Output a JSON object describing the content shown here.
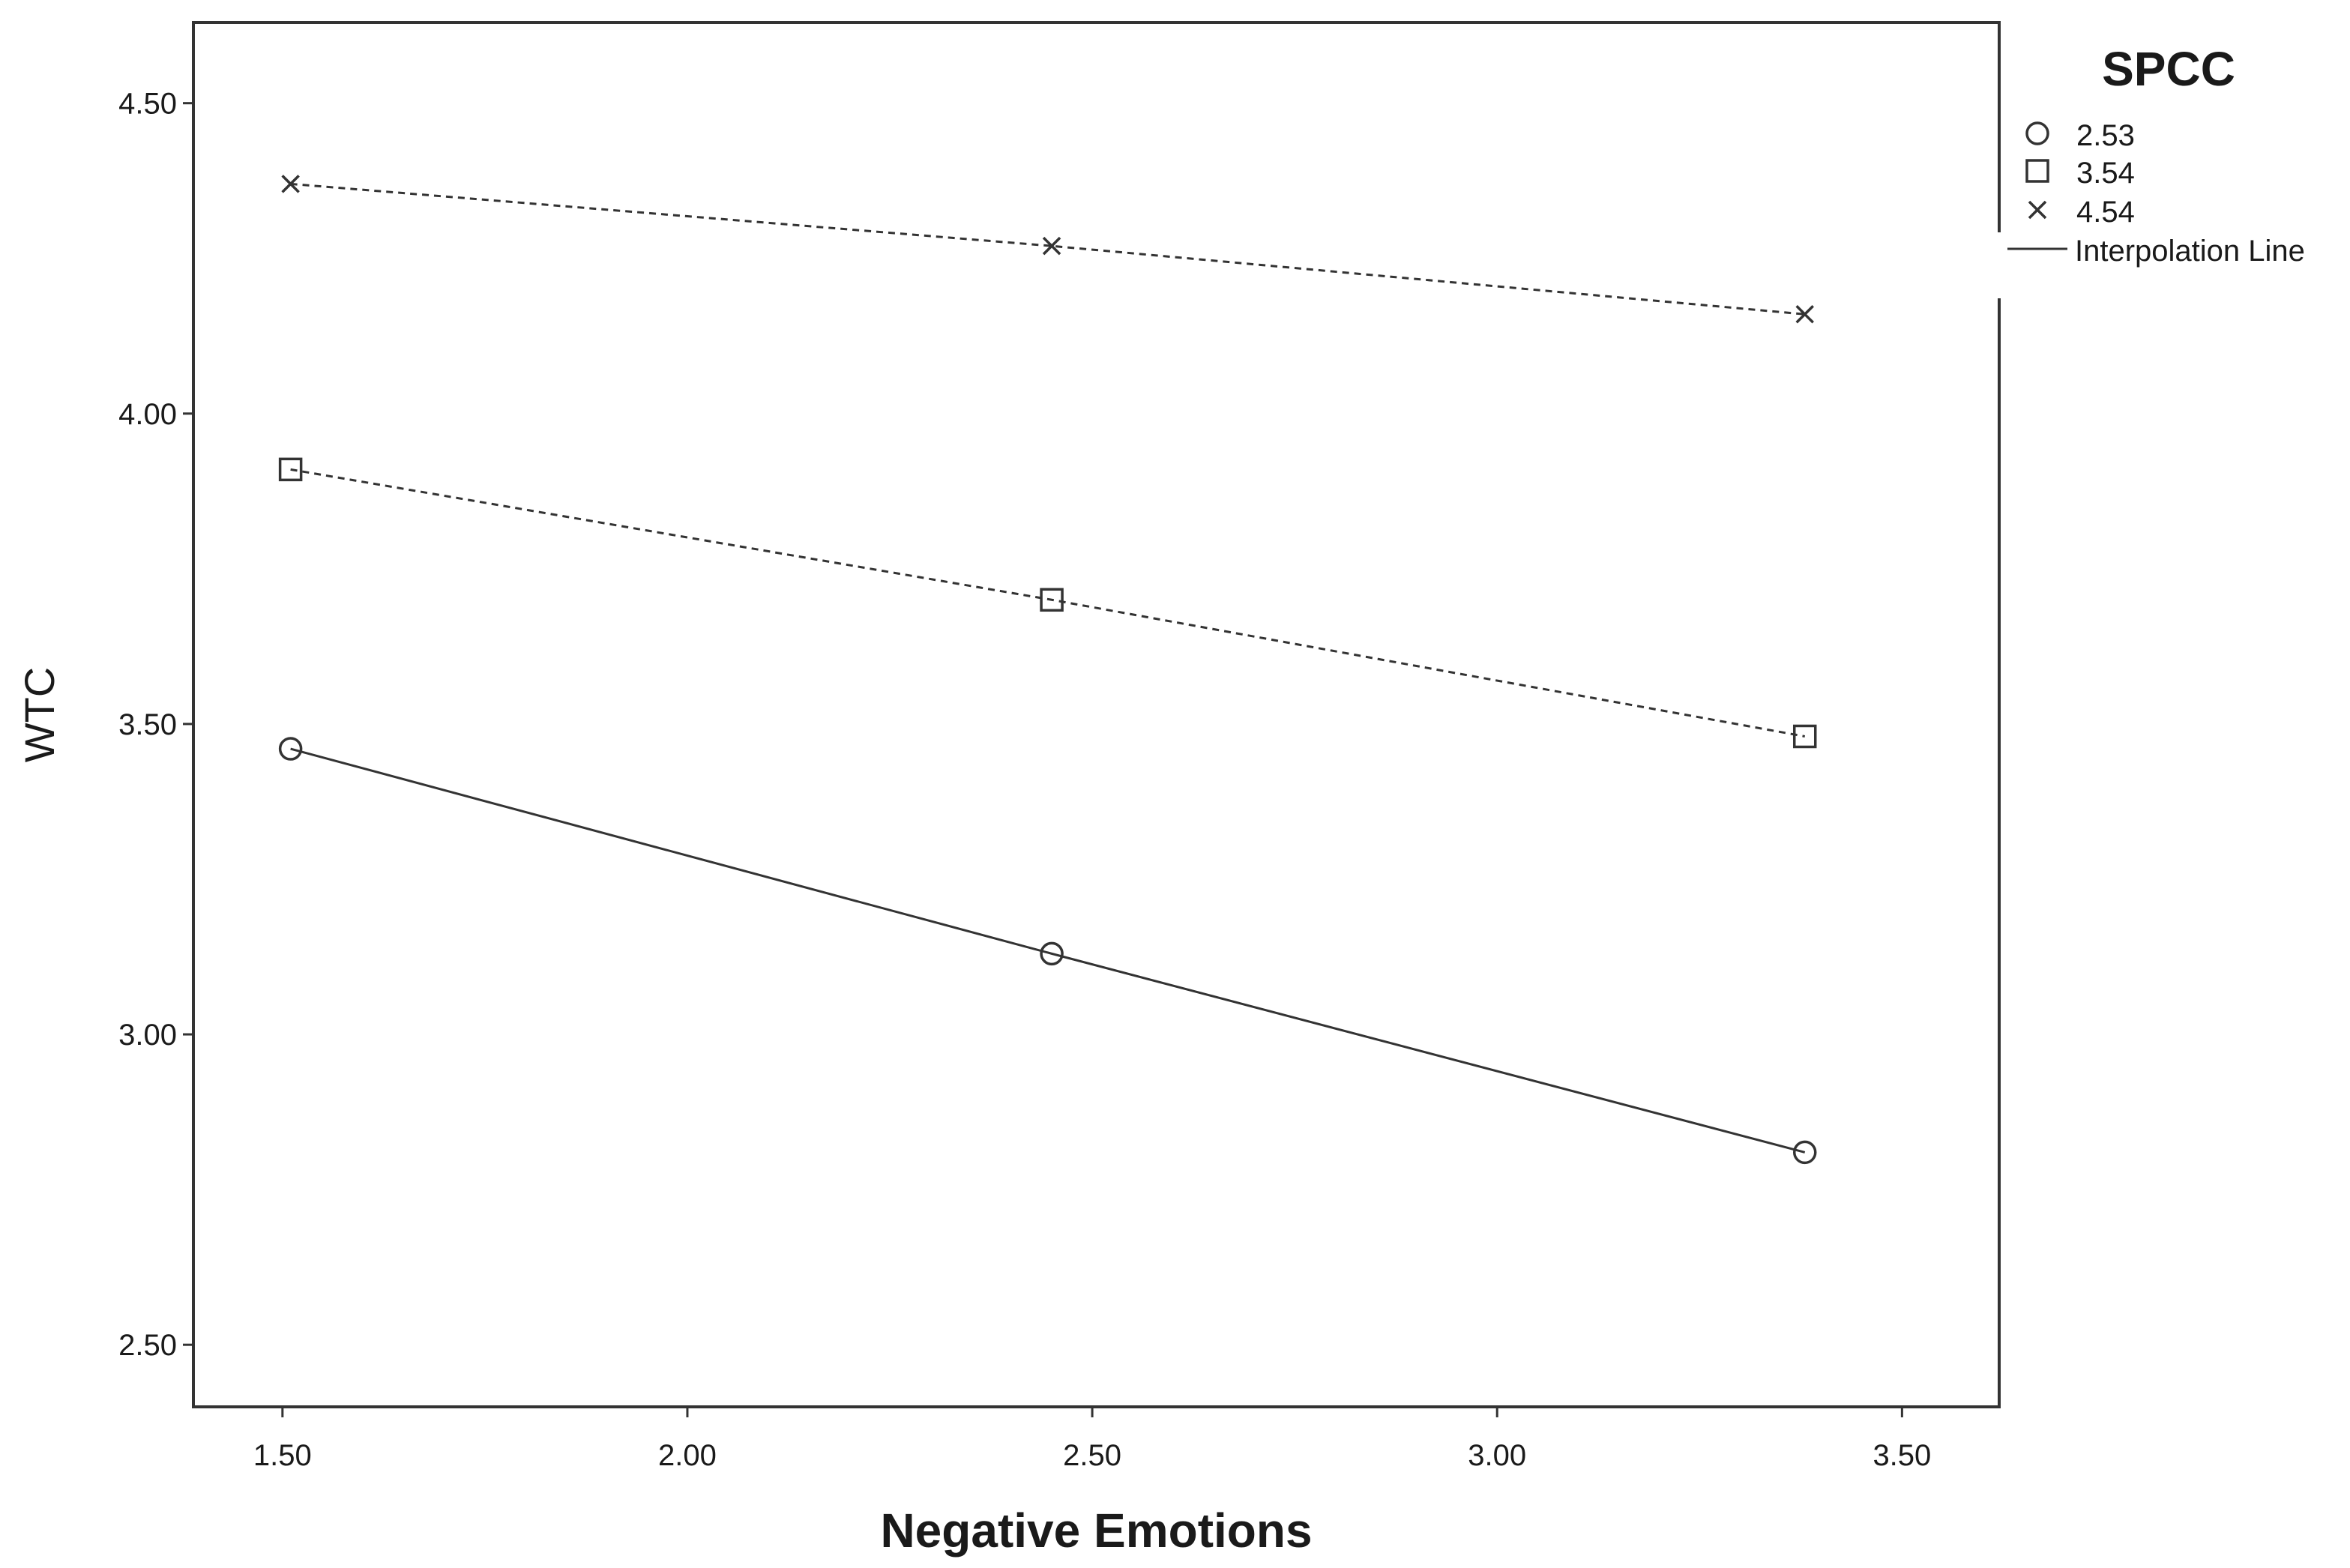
{
  "chart_data": {
    "type": "line",
    "title": "",
    "xlabel": "Negative Emotions",
    "ylabel": "WTC",
    "xlim": [
      1.39,
      3.62
    ],
    "ylim": [
      2.4,
      4.63
    ],
    "x_ticks": [
      "1.50",
      "2.00",
      "2.50",
      "3.00",
      "3.50"
    ],
    "y_ticks": [
      "2.50",
      "3.00",
      "3.50",
      "4.00",
      "4.50"
    ],
    "grid": false,
    "legend": {
      "title": "SPCC",
      "placement": "outside-top-right",
      "entries": [
        "2.53",
        "3.54",
        "4.54",
        "Interpolation Line"
      ]
    },
    "x": [
      1.51,
      2.45,
      3.38
    ],
    "series": [
      {
        "name": "2.53",
        "marker": "circle",
        "line_style": "solid",
        "values": [
          3.46,
          3.13,
          2.81
        ]
      },
      {
        "name": "3.54",
        "marker": "square",
        "line_style": "dashed",
        "values": [
          3.91,
          3.7,
          3.48
        ]
      },
      {
        "name": "4.54",
        "marker": "x",
        "line_style": "dashed",
        "values": [
          4.37,
          4.27,
          4.16
        ]
      }
    ]
  }
}
